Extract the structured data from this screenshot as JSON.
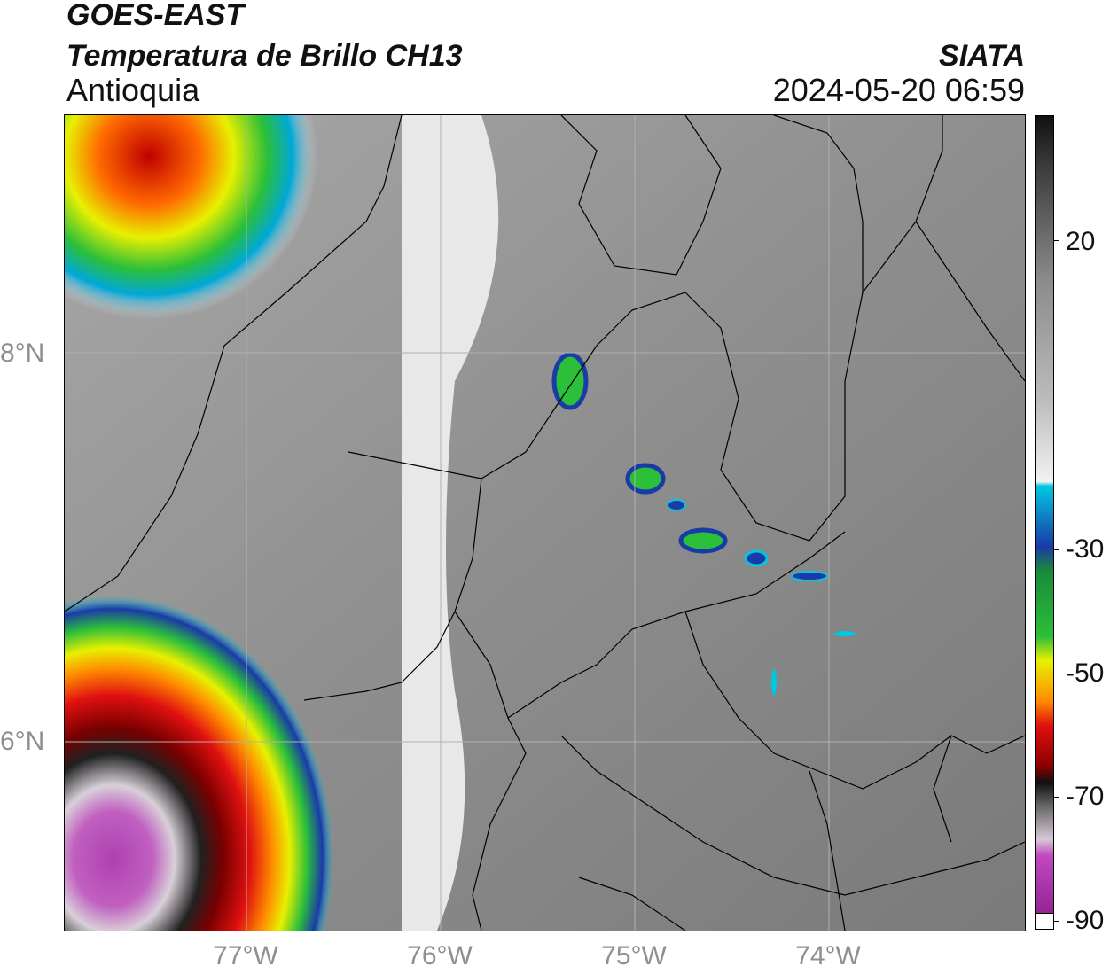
{
  "header": {
    "satellite": "GOES-EAST",
    "product": "Temperatura de Brillo CH13",
    "region": "Antioquia",
    "agency": "SIATA",
    "timestamp": "2024-05-20 06:59"
  },
  "map": {
    "lat_labels": [
      "8°N",
      "6°N"
    ],
    "lon_labels": [
      "77°W",
      "76°W",
      "75°W",
      "74°W"
    ]
  },
  "colorbar": {
    "tick_labels": [
      "20",
      "-30",
      "-50",
      "-70",
      "-90"
    ],
    "colors": {
      "warm_gray": "#8a8a8a",
      "light_gray": "#f2f2f2",
      "cyan": "#00c8e0",
      "blue": "#1a3aa8",
      "green": "#2bbf3a",
      "yellow": "#e8f000",
      "orange": "#ff8a00",
      "red": "#e01010",
      "dark_red": "#8a0000",
      "black": "#101010",
      "magenta": "#c048c0"
    }
  }
}
